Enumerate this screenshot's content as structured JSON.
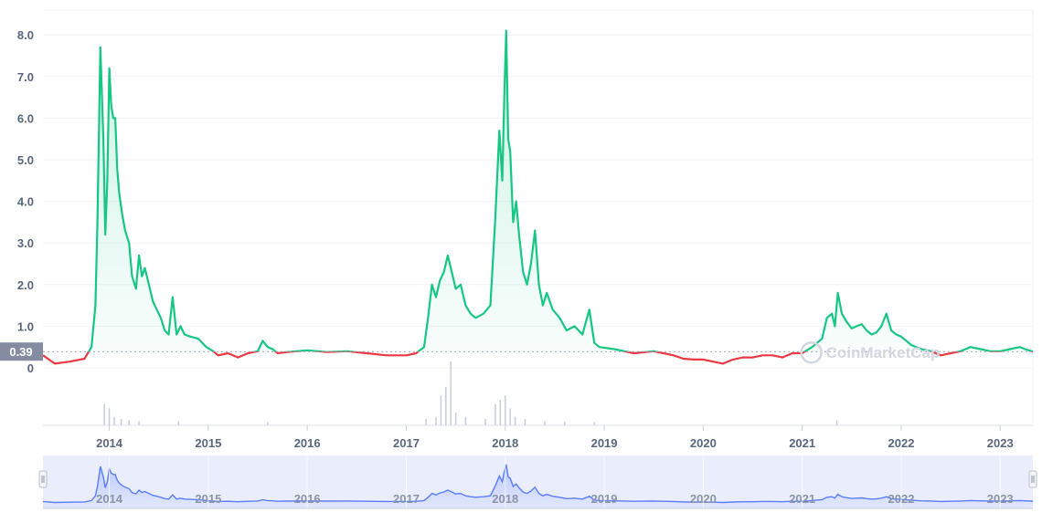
{
  "chart_data": {
    "type": "line",
    "title": "",
    "xlabel": "",
    "ylabel": "",
    "x_ticks": [
      "2014",
      "2015",
      "2016",
      "2017",
      "2018",
      "2019",
      "2020",
      "2021",
      "2022",
      "2023"
    ],
    "y_ticks": [
      "0",
      "1.0",
      "2.0",
      "3.0",
      "4.0",
      "5.0",
      "6.0",
      "7.0",
      "8.0"
    ],
    "xlim": [
      2013.33,
      2023.33
    ],
    "ylim": [
      -0.5,
      8.5
    ],
    "grid": true,
    "legend": "none",
    "current_price": 0.39,
    "current_price_label": "0.39",
    "series": [
      {
        "color_up": "#16c784",
        "color_down": "#ea3943",
        "x": [
          2013.33,
          2013.45,
          2013.6,
          2013.75,
          2013.82,
          2013.86,
          2013.88,
          2013.91,
          2013.94,
          2013.96,
          2013.98,
          2014.0,
          2014.02,
          2014.04,
          2014.06,
          2014.08,
          2014.1,
          2014.13,
          2014.16,
          2014.2,
          2014.23,
          2014.27,
          2014.3,
          2014.33,
          2014.36,
          2014.4,
          2014.44,
          2014.48,
          2014.52,
          2014.56,
          2014.6,
          2014.64,
          2014.68,
          2014.72,
          2014.76,
          2014.82,
          2014.9,
          2014.98,
          2015.05,
          2015.1,
          2015.2,
          2015.3,
          2015.4,
          2015.5,
          2015.55,
          2015.6,
          2015.65,
          2015.7,
          2015.8,
          2016.0,
          2016.2,
          2016.4,
          2016.6,
          2016.8,
          2017.0,
          2017.1,
          2017.18,
          2017.22,
          2017.26,
          2017.3,
          2017.34,
          2017.38,
          2017.42,
          2017.46,
          2017.5,
          2017.55,
          2017.6,
          2017.65,
          2017.7,
          2017.78,
          2017.85,
          2017.9,
          2017.94,
          2017.97,
          2017.99,
          2018.01,
          2018.03,
          2018.05,
          2018.08,
          2018.11,
          2018.14,
          2018.18,
          2018.22,
          2018.26,
          2018.3,
          2018.34,
          2018.38,
          2018.42,
          2018.48,
          2018.55,
          2018.62,
          2018.7,
          2018.78,
          2018.85,
          2018.9,
          2018.95,
          2019.1,
          2019.3,
          2019.5,
          2019.6,
          2019.7,
          2019.8,
          2019.9,
          2020.0,
          2020.1,
          2020.2,
          2020.3,
          2020.4,
          2020.5,
          2020.6,
          2020.7,
          2020.8,
          2020.9,
          2021.0,
          2021.1,
          2021.2,
          2021.25,
          2021.3,
          2021.33,
          2021.36,
          2021.4,
          2021.45,
          2021.5,
          2021.55,
          2021.6,
          2021.65,
          2021.7,
          2021.75,
          2021.8,
          2021.85,
          2021.9,
          2021.95,
          2022.0,
          2022.1,
          2022.2,
          2022.3,
          2022.4,
          2022.5,
          2022.6,
          2022.7,
          2022.8,
          2022.9,
          2023.0,
          2023.1,
          2023.2,
          2023.25,
          2023.33
        ],
        "y": [
          0.3,
          0.1,
          0.15,
          0.22,
          0.5,
          1.5,
          3.5,
          7.7,
          5.5,
          3.2,
          4.5,
          7.2,
          6.3,
          6.0,
          6.0,
          4.8,
          4.2,
          3.7,
          3.3,
          3.0,
          2.2,
          1.9,
          2.7,
          2.2,
          2.4,
          2.0,
          1.6,
          1.4,
          1.2,
          0.9,
          0.8,
          1.7,
          0.8,
          1.0,
          0.8,
          0.75,
          0.7,
          0.5,
          0.4,
          0.3,
          0.35,
          0.25,
          0.35,
          0.4,
          0.65,
          0.5,
          0.45,
          0.35,
          0.38,
          0.42,
          0.38,
          0.4,
          0.35,
          0.3,
          0.3,
          0.35,
          0.5,
          1.2,
          2.0,
          1.7,
          2.1,
          2.3,
          2.7,
          2.3,
          1.9,
          2.0,
          1.5,
          1.3,
          1.2,
          1.3,
          1.5,
          3.6,
          5.7,
          4.5,
          6.5,
          8.1,
          5.5,
          5.2,
          3.5,
          4.0,
          3.2,
          2.3,
          2.0,
          2.5,
          3.3,
          2.0,
          1.5,
          1.8,
          1.4,
          1.2,
          0.9,
          1.0,
          0.8,
          1.4,
          0.6,
          0.5,
          0.45,
          0.35,
          0.4,
          0.35,
          0.3,
          0.22,
          0.2,
          0.2,
          0.15,
          0.1,
          0.2,
          0.25,
          0.25,
          0.3,
          0.3,
          0.25,
          0.35,
          0.35,
          0.5,
          0.7,
          1.2,
          1.3,
          1.0,
          1.8,
          1.3,
          1.1,
          0.95,
          1.0,
          1.05,
          0.9,
          0.8,
          0.85,
          1.0,
          1.3,
          0.9,
          0.8,
          0.75,
          0.55,
          0.45,
          0.4,
          0.3,
          0.35,
          0.4,
          0.5,
          0.45,
          0.4,
          0.4,
          0.45,
          0.5,
          0.45,
          0.39
        ]
      }
    ],
    "volume": [
      {
        "x": 2013.95,
        "v": 0.5
      },
      {
        "x": 2014.0,
        "v": 0.4
      },
      {
        "x": 2014.05,
        "v": 0.2
      },
      {
        "x": 2014.12,
        "v": 0.15
      },
      {
        "x": 2014.2,
        "v": 0.12
      },
      {
        "x": 2014.3,
        "v": 0.1
      },
      {
        "x": 2014.7,
        "v": 0.1
      },
      {
        "x": 2015.6,
        "v": 0.08
      },
      {
        "x": 2017.2,
        "v": 0.15
      },
      {
        "x": 2017.3,
        "v": 0.2
      },
      {
        "x": 2017.35,
        "v": 0.7
      },
      {
        "x": 2017.4,
        "v": 0.9
      },
      {
        "x": 2017.45,
        "v": 1.5
      },
      {
        "x": 2017.5,
        "v": 0.3
      },
      {
        "x": 2017.6,
        "v": 0.2
      },
      {
        "x": 2017.8,
        "v": 0.15
      },
      {
        "x": 2017.9,
        "v": 0.5
      },
      {
        "x": 2017.95,
        "v": 0.6
      },
      {
        "x": 2018.0,
        "v": 0.7
      },
      {
        "x": 2018.05,
        "v": 0.4
      },
      {
        "x": 2018.1,
        "v": 0.2
      },
      {
        "x": 2018.2,
        "v": 0.15
      },
      {
        "x": 2018.4,
        "v": 0.1
      },
      {
        "x": 2018.6,
        "v": 0.08
      },
      {
        "x": 2018.9,
        "v": 0.08
      },
      {
        "x": 2021.35,
        "v": 0.12
      }
    ],
    "navigator_ticks": [
      "2014",
      "2015",
      "2016",
      "2017",
      "2018",
      "2019",
      "2020",
      "2021",
      "2022",
      "2023"
    ],
    "watermark": "CoinMarketCap"
  }
}
